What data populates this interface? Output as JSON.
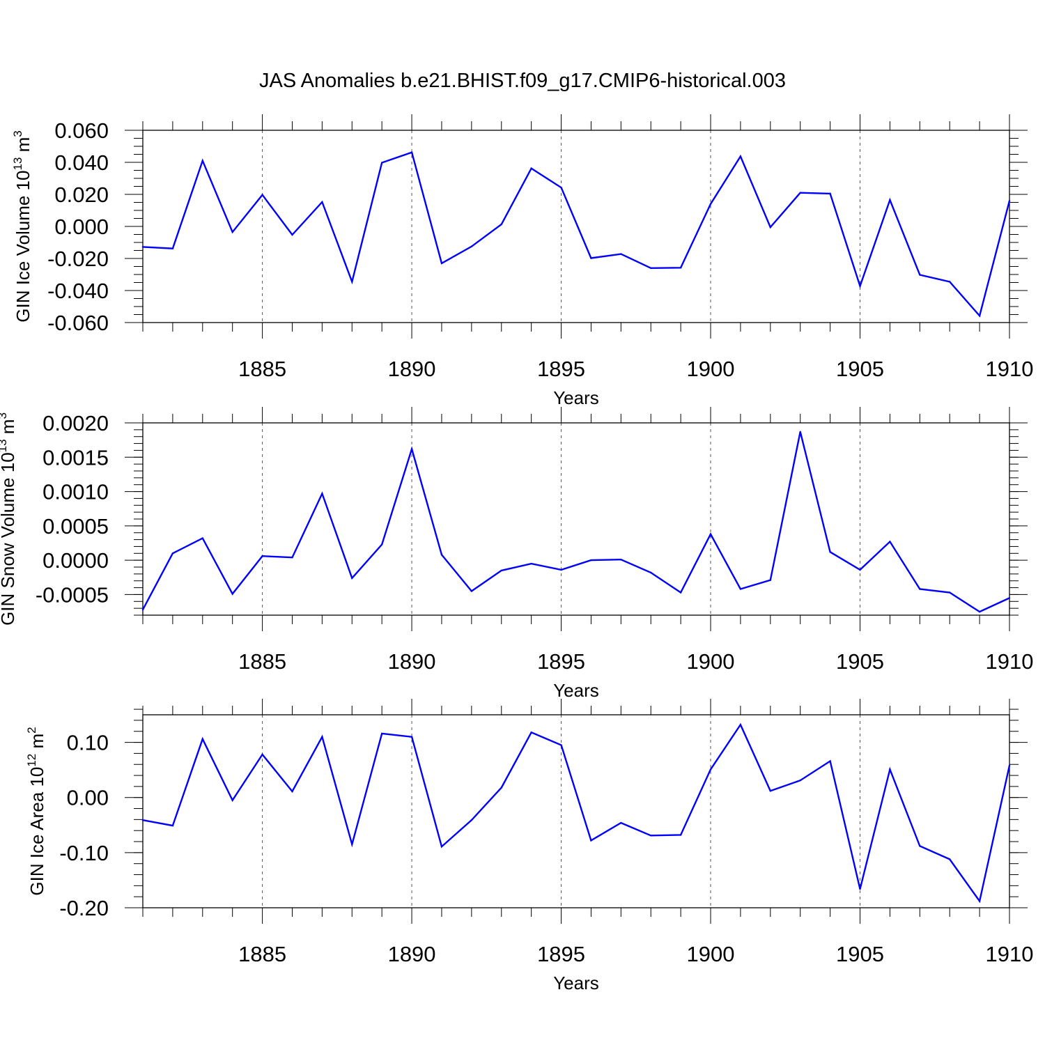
{
  "figure": {
    "title": "JAS Anomalies b.e21.BHIST.f09_g17.CMIP6-historical.003"
  },
  "chart_data": [
    {
      "type": "line",
      "title": "JAS Anomalies b.e21.BHIST.f09_g17.CMIP6-historical.003",
      "xlabel": "Years",
      "ylabel": "GIN Ice Volume 10",
      "ylabel_sup": "13",
      "ylabel_unit": " m",
      "ylabel_unit_sup": "3",
      "xlim": [
        1881,
        1910
      ],
      "ylim": [
        -0.06,
        0.06
      ],
      "x_ticks": [
        1885,
        1890,
        1895,
        1900,
        1905,
        1910
      ],
      "y_ticks": [
        -0.06,
        -0.04,
        -0.02,
        0.0,
        0.02,
        0.04,
        0.06
      ],
      "y_tick_labels": [
        "-0.060",
        "-0.040",
        "-0.020",
        "0.000",
        "0.020",
        "0.040",
        "0.060"
      ],
      "y_minor_step": 0.005,
      "x_minor_step": 1,
      "grid": "vertical dashed at major x ticks",
      "series": [
        {
          "name": "GIN Ice Volume",
          "color": "#0000ff",
          "x": [
            1881,
            1882,
            1883,
            1884,
            1885,
            1886,
            1887,
            1888,
            1889,
            1890,
            1891,
            1892,
            1893,
            1894,
            1895,
            1896,
            1897,
            1898,
            1899,
            1900,
            1901,
            1902,
            1903,
            1904,
            1905,
            1906,
            1907,
            1908,
            1909,
            1910
          ],
          "values": [
            -0.0128,
            -0.0138,
            0.041,
            -0.0035,
            0.0197,
            -0.0052,
            0.0152,
            -0.0345,
            0.0398,
            0.0462,
            -0.023,
            -0.0125,
            0.0013,
            0.0362,
            0.0242,
            -0.0198,
            -0.0172,
            -0.026,
            -0.0258,
            0.014,
            0.0437,
            -0.0005,
            0.021,
            0.0205,
            -0.0372,
            0.0165,
            -0.0302,
            -0.0345,
            -0.0558,
            0.016
          ]
        }
      ]
    },
    {
      "type": "line",
      "xlabel": "Years",
      "ylabel": "GIN Snow Volume 10",
      "ylabel_sup": "13",
      "ylabel_unit": " m",
      "ylabel_unit_sup": "3",
      "xlim": [
        1881,
        1910
      ],
      "ylim": [
        -0.0008,
        0.002
      ],
      "x_ticks": [
        1885,
        1890,
        1895,
        1900,
        1905,
        1910
      ],
      "y_ticks": [
        -0.0005,
        0.0,
        0.0005,
        0.001,
        0.0015,
        0.002
      ],
      "y_tick_labels": [
        "-0.0005",
        "0.0000",
        "0.0005",
        "0.0010",
        "0.0015",
        "0.0020"
      ],
      "y_minor_step": 0.0001,
      "x_minor_step": 1,
      "grid": "vertical dashed at major x ticks",
      "series": [
        {
          "name": "GIN Snow Volume",
          "color": "#0000ff",
          "x": [
            1881,
            1882,
            1883,
            1884,
            1885,
            1886,
            1887,
            1888,
            1889,
            1890,
            1891,
            1892,
            1893,
            1894,
            1895,
            1896,
            1897,
            1898,
            1899,
            1900,
            1901,
            1902,
            1903,
            1904,
            1905,
            1906,
            1907,
            1908,
            1909,
            1910
          ],
          "values": [
            -0.00072,
            0.0001,
            0.00032,
            -0.00049,
            6e-05,
            4e-05,
            0.00097,
            -0.00026,
            0.00023,
            0.00162,
            8e-05,
            -0.00045,
            -0.00015,
            -5e-05,
            -0.00014,
            0.0,
            1e-05,
            -0.00018,
            -0.00047,
            0.00038,
            -0.00042,
            -0.00029,
            0.00187,
            0.00012,
            -0.00014,
            0.00027,
            -0.00042,
            -0.00047,
            -0.00075,
            -0.00055
          ]
        }
      ]
    },
    {
      "type": "line",
      "xlabel": "Years",
      "ylabel": "GIN Ice Area 10",
      "ylabel_sup": "12",
      "ylabel_unit": " m",
      "ylabel_unit_sup": "2",
      "xlim": [
        1881,
        1910
      ],
      "ylim": [
        -0.2,
        0.15
      ],
      "x_ticks": [
        1885,
        1890,
        1895,
        1900,
        1905,
        1910
      ],
      "y_ticks": [
        -0.2,
        -0.1,
        0.0,
        0.1
      ],
      "y_tick_labels": [
        "-0.20",
        "-0.10",
        "0.00",
        "0.10"
      ],
      "y_minor_step": 0.02,
      "x_minor_step": 1,
      "grid": "vertical dashed at major x ticks",
      "series": [
        {
          "name": "GIN Ice Area",
          "color": "#0000ff",
          "x": [
            1881,
            1882,
            1883,
            1884,
            1885,
            1886,
            1887,
            1888,
            1889,
            1890,
            1891,
            1892,
            1893,
            1894,
            1895,
            1896,
            1897,
            1898,
            1899,
            1900,
            1901,
            1902,
            1903,
            1904,
            1905,
            1906,
            1907,
            1908,
            1909,
            1910
          ],
          "values": [
            -0.041,
            -0.051,
            0.106,
            -0.005,
            0.078,
            0.011,
            0.11,
            -0.085,
            0.116,
            0.11,
            -0.089,
            -0.041,
            0.018,
            0.118,
            0.095,
            -0.078,
            -0.046,
            -0.069,
            -0.068,
            0.051,
            0.132,
            0.012,
            0.031,
            0.066,
            -0.166,
            0.051,
            -0.088,
            -0.112,
            -0.188,
            0.058
          ]
        }
      ]
    }
  ]
}
